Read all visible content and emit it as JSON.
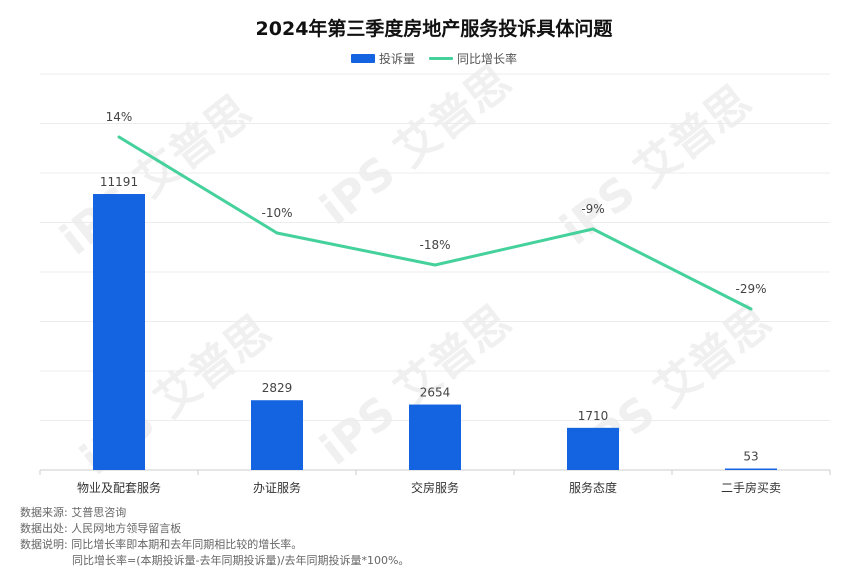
{
  "colors": {
    "bar": "#1464e1",
    "line": "#45d19c",
    "grid": "#ececec",
    "axis": "#cccccc"
  },
  "watermark": "iPS 艾普思",
  "chart_data": {
    "type": "bar",
    "title": "2024年第三季度房地产服务投诉具体问题",
    "categories": [
      "物业及配套服务",
      "办证服务",
      "交房服务",
      "服务态度",
      "二手房买卖"
    ],
    "series": [
      {
        "name": "投诉量",
        "type": "bar",
        "values": [
          11191,
          2829,
          2654,
          1710,
          53
        ],
        "labels": [
          "11191",
          "2829",
          "2654",
          "1710",
          "53"
        ]
      },
      {
        "name": "同比增长率",
        "type": "line",
        "values": [
          14,
          -10,
          -18,
          -9,
          -29
        ],
        "labels": [
          "14%",
          "-10%",
          "-18%",
          "-9%",
          "-29%"
        ]
      }
    ],
    "legend_position": "top-center",
    "grid": true
  },
  "notes": {
    "source_label": "数据来源:",
    "source_value": "艾普思咨询",
    "origin_label": "数据出处:",
    "origin_value": "人民网地方领导留言板",
    "desc_label": "数据说明:",
    "desc_value": "同比增长率即本期和去年同期相比较的增长率。",
    "formula": "同比增长率=(本期投诉量-去年同期投诉量)/去年同期投诉量*100%。"
  }
}
